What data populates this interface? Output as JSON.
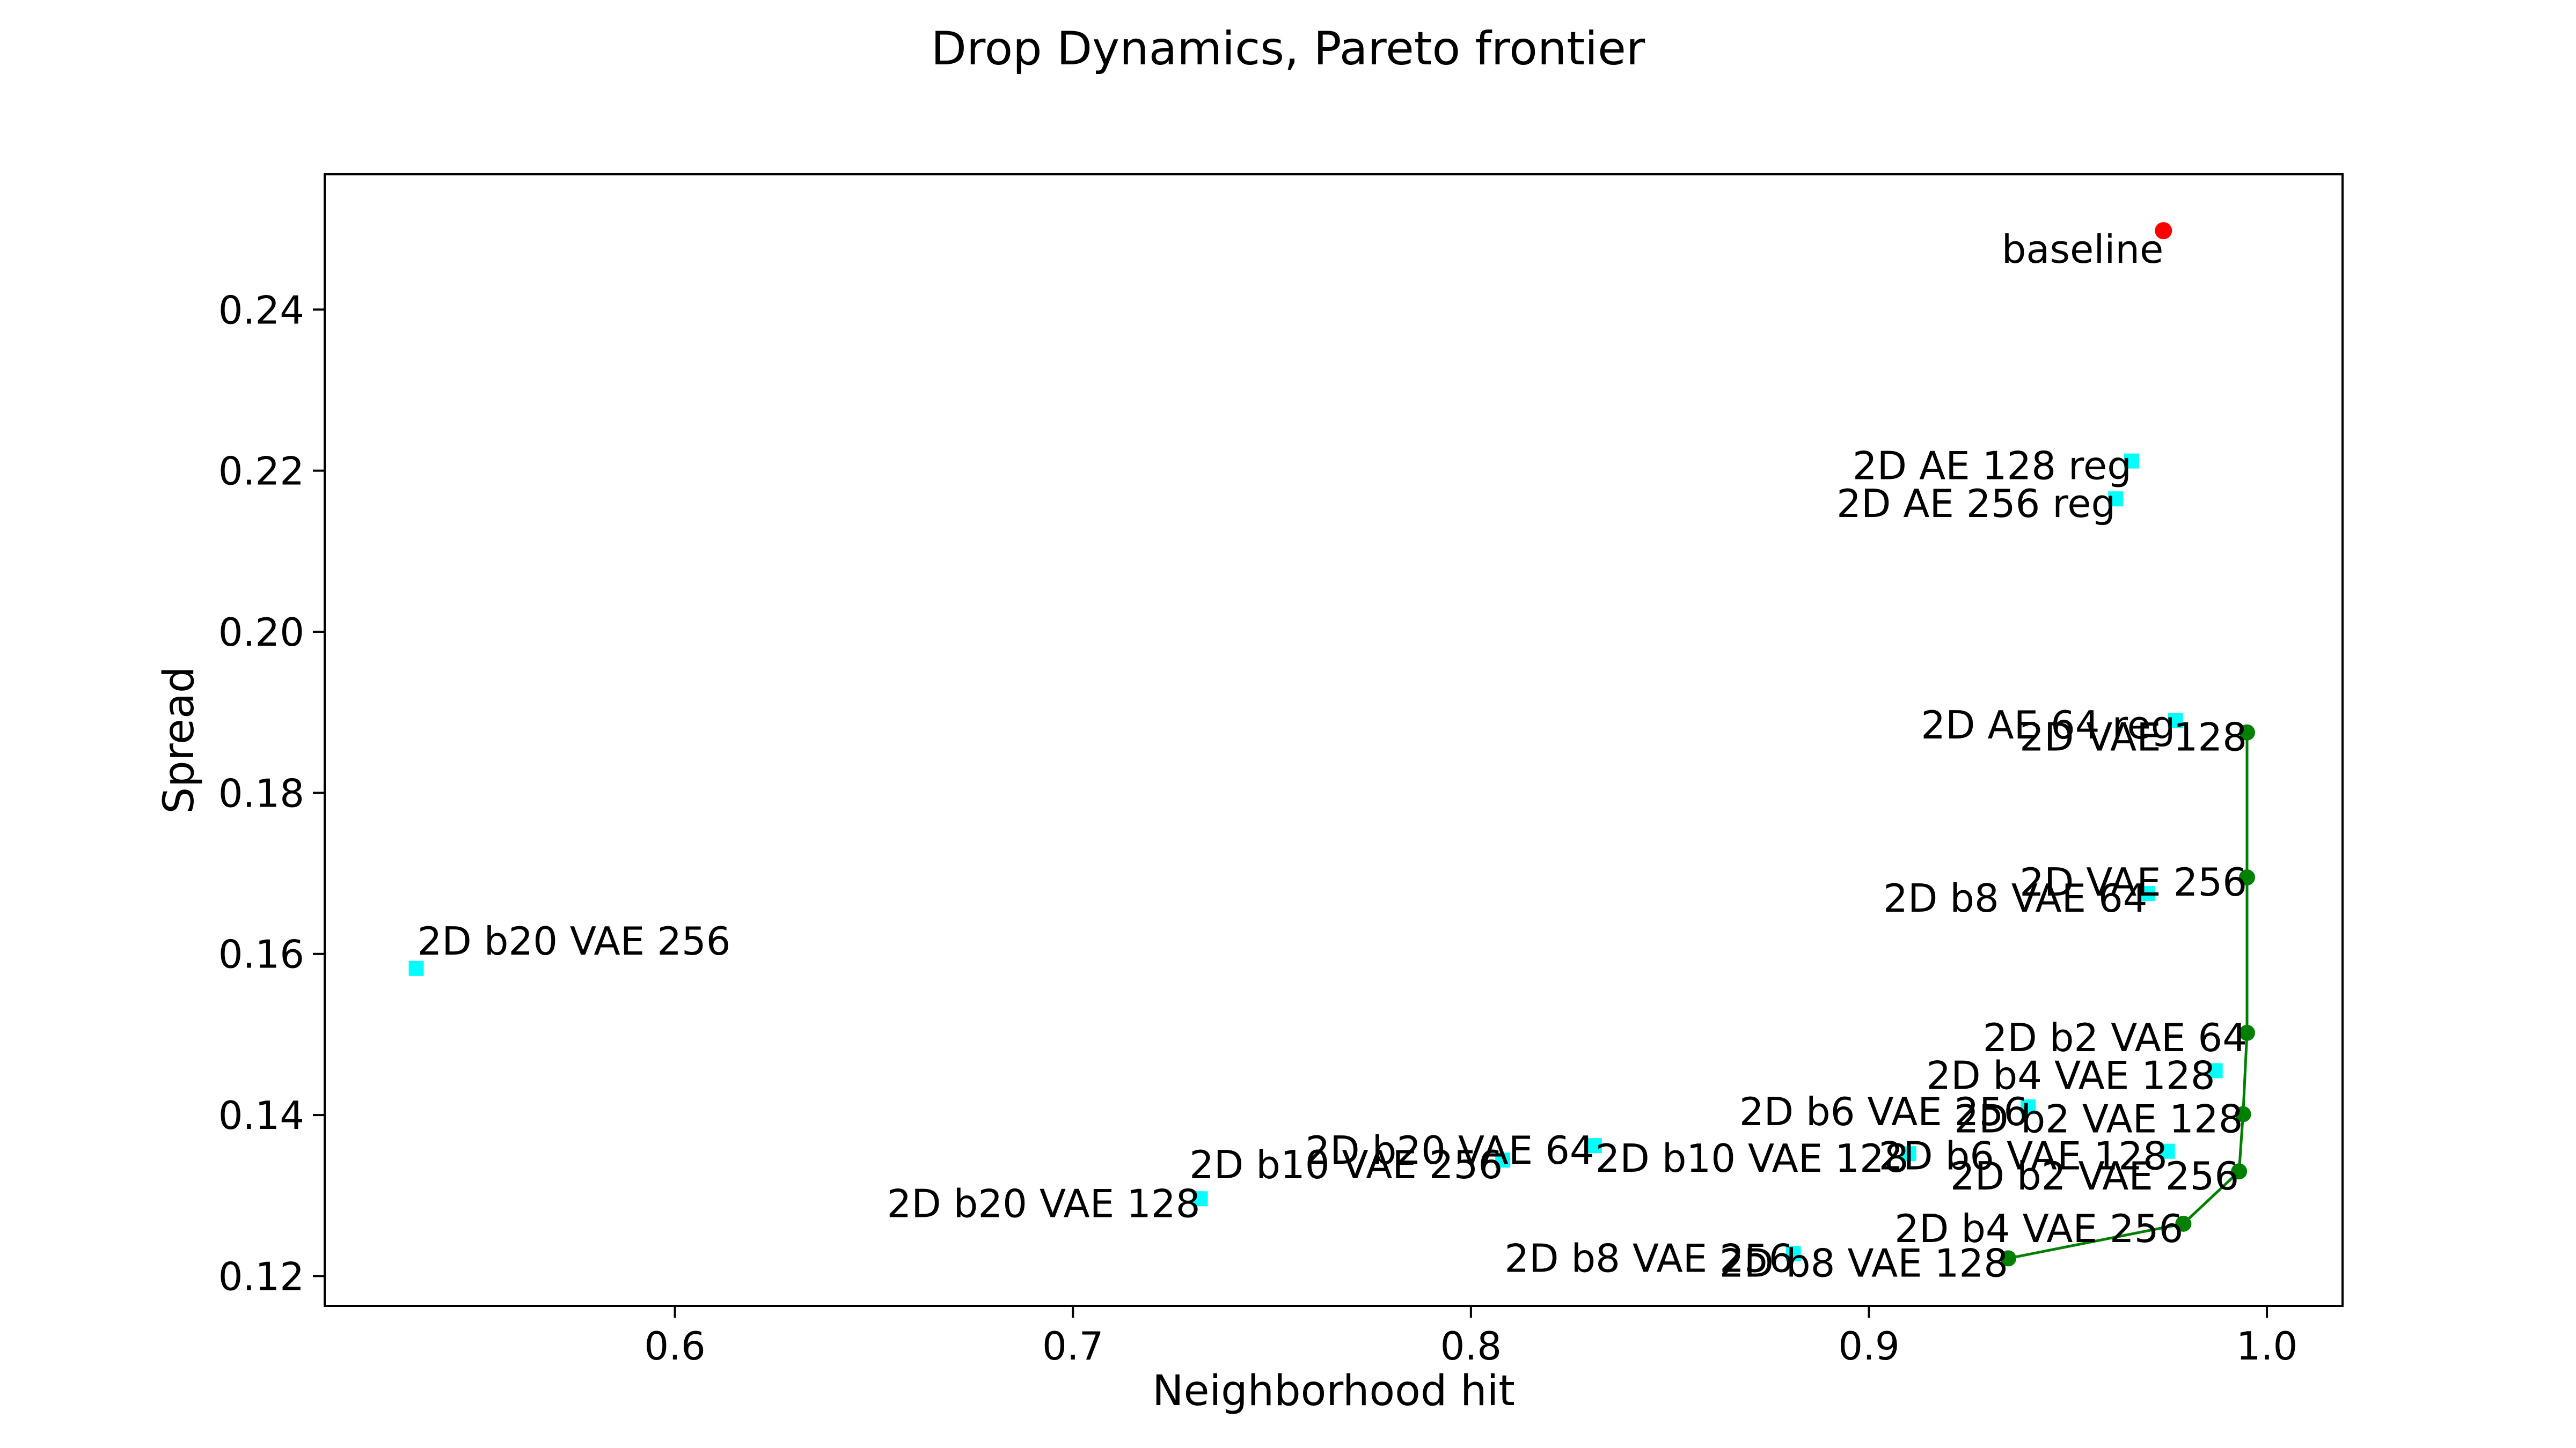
{
  "chart_data": {
    "type": "scatter",
    "title": "Drop Dynamics, Pareto frontier",
    "xlabel": "Neighborhood hit",
    "ylabel": "Spread",
    "xlim": [
      0.512,
      1.019
    ],
    "ylim": [
      0.1163,
      0.2568
    ],
    "xticks": [
      0.6,
      0.7,
      0.8,
      0.9,
      1.0
    ],
    "xtick_labels": [
      "0.6",
      "0.7",
      "0.8",
      "0.9",
      "1.0"
    ],
    "yticks": [
      0.12,
      0.14,
      0.16,
      0.18,
      0.2,
      0.22,
      0.24
    ],
    "ytick_labels": [
      "0.12",
      "0.14",
      "0.16",
      "0.18",
      "0.20",
      "0.22",
      "0.24"
    ],
    "grid": false,
    "colors": {
      "baseline": "#ff0000",
      "points": "#00ffff",
      "frontier": "#008000"
    },
    "baseline": {
      "label": "baseline",
      "x": 0.974,
      "y": 0.2498
    },
    "points": [
      {
        "label": "2D AE 128 reg",
        "x": 0.966,
        "y": 0.2212
      },
      {
        "label": "2D AE 256 reg",
        "x": 0.962,
        "y": 0.2165
      },
      {
        "label": "2D AE 64 reg",
        "x": 0.977,
        "y": 0.189
      },
      {
        "label": "2D b8 VAE 64",
        "x": 0.97,
        "y": 0.1675
      },
      {
        "label": "2D b20 VAE 256",
        "x": 0.535,
        "y": 0.1582
      },
      {
        "label": "2D b4 VAE 128",
        "x": 0.987,
        "y": 0.1455
      },
      {
        "label": "2D b6 VAE 256",
        "x": 0.94,
        "y": 0.141
      },
      {
        "label": "2D b6 VAE 128",
        "x": 0.975,
        "y": 0.1355
      },
      {
        "label": "2D b10 VAE 128",
        "x": 0.91,
        "y": 0.1352
      },
      {
        "label": "2D b20 VAE 64",
        "x": 0.831,
        "y": 0.1362
      },
      {
        "label": "2D b10 VAE 256",
        "x": 0.808,
        "y": 0.1344
      },
      {
        "label": "2D b20 VAE 128",
        "x": 0.732,
        "y": 0.1296
      },
      {
        "label": "2D b8 VAE 256",
        "x": 0.881,
        "y": 0.1228
      }
    ],
    "frontier": [
      {
        "label": "2D VAE 128",
        "x": 0.995,
        "y": 0.1875
      },
      {
        "label": "2D VAE 256",
        "x": 0.995,
        "y": 0.1695
      },
      {
        "label": "2D b2 VAE 64",
        "x": 0.995,
        "y": 0.1502
      },
      {
        "label": "2D b2 VAE 128",
        "x": 0.994,
        "y": 0.1401
      },
      {
        "label": "2D b2 VAE 256",
        "x": 0.993,
        "y": 0.133
      },
      {
        "label": "2D b4 VAE 256",
        "x": 0.979,
        "y": 0.1265
      },
      {
        "label": "2D b8 VAE 128",
        "x": 0.935,
        "y": 0.1222
      }
    ]
  }
}
